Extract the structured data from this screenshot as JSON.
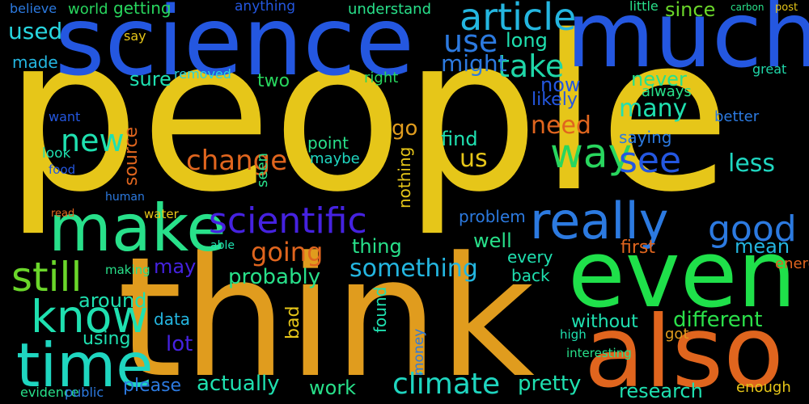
{
  "words": [
    {
      "text": "people",
      "color": "#e6c619"
    },
    {
      "text": "think",
      "color": "#e09c1e"
    },
    {
      "text": "science",
      "color": "#2457e0"
    },
    {
      "text": "much",
      "color": "#2457e0"
    },
    {
      "text": "even",
      "color": "#1fe04a"
    },
    {
      "text": "also",
      "color": "#e0651e"
    },
    {
      "text": "make",
      "color": "#28e08a"
    },
    {
      "text": "time",
      "color": "#1fd6c0"
    },
    {
      "text": "really",
      "color": "#2c7ae0"
    },
    {
      "text": "know",
      "color": "#1fe0b0"
    },
    {
      "text": "still",
      "color": "#6ad62a"
    },
    {
      "text": "article",
      "color": "#24b6e0"
    },
    {
      "text": "scientific",
      "color": "#4522e0"
    },
    {
      "text": "way",
      "color": "#28d65e"
    },
    {
      "text": "see",
      "color": "#2457e0"
    },
    {
      "text": "good",
      "color": "#2c7ae0"
    },
    {
      "text": "use",
      "color": "#2c7ae0"
    },
    {
      "text": "new",
      "color": "#1fe0b0"
    },
    {
      "text": "take",
      "color": "#1fd6a8"
    },
    {
      "text": "change",
      "color": "#e0651e"
    },
    {
      "text": "climate",
      "color": "#1fd6c0"
    },
    {
      "text": "something",
      "color": "#24b6e0"
    },
    {
      "text": "going",
      "color": "#e0651e"
    },
    {
      "text": "need",
      "color": "#e0651e"
    },
    {
      "text": "used",
      "color": "#28d6e0"
    },
    {
      "text": "might",
      "color": "#2c7ae0"
    },
    {
      "text": "many",
      "color": "#1fe0b0"
    },
    {
      "text": "less",
      "color": "#1fd6c0"
    },
    {
      "text": "probably",
      "color": "#28e08a"
    },
    {
      "text": "actually",
      "color": "#1fe0b0"
    },
    {
      "text": "pretty",
      "color": "#1fe0b0"
    },
    {
      "text": "research",
      "color": "#1fe0b0"
    },
    {
      "text": "different",
      "color": "#2be04a"
    },
    {
      "text": "work",
      "color": "#28e08a"
    },
    {
      "text": "well",
      "color": "#28e08a"
    },
    {
      "text": "lot",
      "color": "#4522e0"
    },
    {
      "text": "may",
      "color": "#4522e0"
    },
    {
      "text": "mean",
      "color": "#24b6e0"
    },
    {
      "text": "first",
      "color": "#e0651e"
    },
    {
      "text": "long",
      "color": "#1fe0b0"
    },
    {
      "text": "now",
      "color": "#2457e0"
    },
    {
      "text": "sure",
      "color": "#1fe0b0"
    },
    {
      "text": "two",
      "color": "#28d65e"
    },
    {
      "text": "likely",
      "color": "#2457e0"
    },
    {
      "text": "never",
      "color": "#28e08a"
    },
    {
      "text": "always",
      "color": "#28e08a"
    },
    {
      "text": "saying",
      "color": "#2c7ae0"
    },
    {
      "text": "point",
      "color": "#28e08a"
    },
    {
      "text": "maybe",
      "color": "#1fd6c0"
    },
    {
      "text": "thing",
      "color": "#28e08a"
    },
    {
      "text": "around",
      "color": "#1fe0b0"
    },
    {
      "text": "using",
      "color": "#1fe0b0"
    },
    {
      "text": "data",
      "color": "#24b6e0"
    },
    {
      "text": "without",
      "color": "#1fe0b0"
    },
    {
      "text": "every",
      "color": "#1fe0b0"
    },
    {
      "text": "back",
      "color": "#1fe0b0"
    },
    {
      "text": "please",
      "color": "#2c7ae0"
    },
    {
      "text": "enough",
      "color": "#e6c619"
    },
    {
      "text": "made",
      "color": "#24b6e0"
    },
    {
      "text": "since",
      "color": "#6ad62a"
    },
    {
      "text": "getting",
      "color": "#28d65e"
    },
    {
      "text": "world",
      "color": "#28d65e"
    },
    {
      "text": "believe",
      "color": "#2c7ae0"
    },
    {
      "text": "understand",
      "color": "#28e08a"
    },
    {
      "text": "anything",
      "color": "#2457e0"
    },
    {
      "text": "little",
      "color": "#28e08a"
    },
    {
      "text": "removed",
      "color": "#28d6e0"
    },
    {
      "text": "right",
      "color": "#28d65e"
    },
    {
      "text": "go",
      "color": "#e09c1e"
    },
    {
      "text": "find",
      "color": "#1fe0b0"
    },
    {
      "text": "us",
      "color": "#e6c619"
    },
    {
      "text": "problem",
      "color": "#2c7ae0"
    },
    {
      "text": "better",
      "color": "#2c7ae0"
    },
    {
      "text": "great",
      "color": "#1fd6a8"
    },
    {
      "text": "energy",
      "color": "#e0651e"
    },
    {
      "text": "got",
      "color": "#e09c1e"
    },
    {
      "text": "say",
      "color": "#e6c619"
    },
    {
      "text": "want",
      "color": "#2457e0"
    },
    {
      "text": "look",
      "color": "#1fe0b0"
    },
    {
      "text": "food",
      "color": "#2457e0"
    },
    {
      "text": "read",
      "color": "#e0651e"
    },
    {
      "text": "water",
      "color": "#e6c619"
    },
    {
      "text": "human",
      "color": "#2c7ae0"
    },
    {
      "text": "able",
      "color": "#1fe0b0"
    },
    {
      "text": "making",
      "color": "#28e08a"
    },
    {
      "text": "high",
      "color": "#1fe0b0"
    },
    {
      "text": "interesting",
      "color": "#28e08a"
    },
    {
      "text": "evidence",
      "color": "#28e08a"
    },
    {
      "text": "public",
      "color": "#2c7ae0"
    },
    {
      "text": "carbon",
      "color": "#28e08a"
    },
    {
      "text": "post",
      "color": "#e6c619"
    },
    {
      "text": "source",
      "color": "#e0651e"
    },
    {
      "text": "bad",
      "color": "#e6c619"
    },
    {
      "text": "found",
      "color": "#1fe0b0"
    },
    {
      "text": "nothing",
      "color": "#e6c619"
    },
    {
      "text": "money",
      "color": "#2c7ae0"
    },
    {
      "text": "seen",
      "color": "#28e08a"
    }
  ]
}
